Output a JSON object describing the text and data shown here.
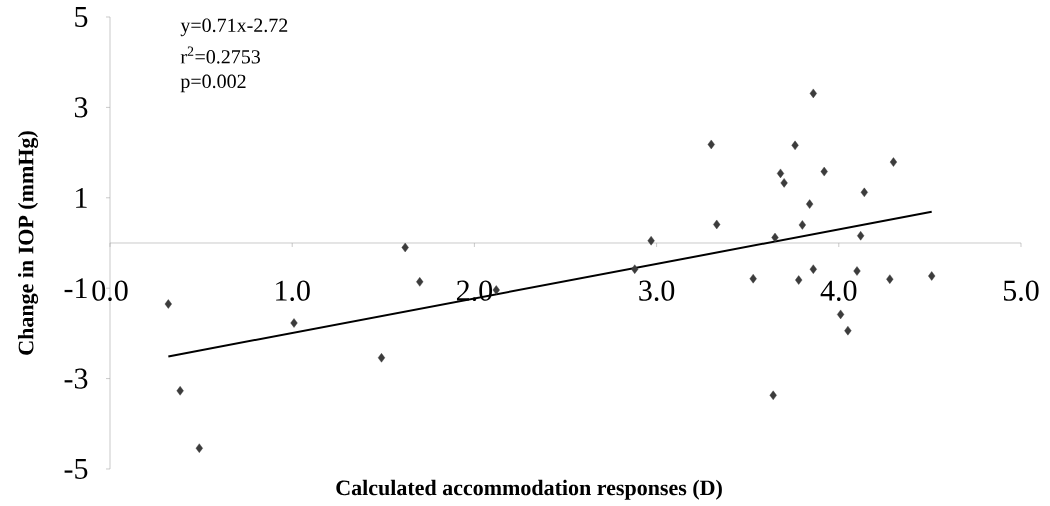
{
  "chart_data": {
    "type": "scatter",
    "xlabel": "Calculated accommodation responses (D)",
    "ylabel": "Change in IOP (mmHg)",
    "annotations": [
      "y=0.71x-2.72",
      "r$^{2}$=0.2753",
      "p=0.002"
    ],
    "xlim": [
      0,
      5
    ],
    "ylim": [
      -5,
      5
    ],
    "xticks": [
      {
        "value": 0,
        "label": "0.0"
      },
      {
        "value": 1,
        "label": "1.0"
      },
      {
        "value": 2,
        "label": "2.0"
      },
      {
        "value": 3,
        "label": "3.0"
      },
      {
        "value": 4,
        "label": "4.0"
      },
      {
        "value": 5,
        "label": "5.0"
      }
    ],
    "yticks": [
      -5,
      -3,
      -1,
      1,
      3,
      5
    ],
    "grid": false,
    "series": [
      {
        "color": "#3c3c3c",
        "marker": "diamond",
        "x": [
          0.32,
          0.385,
          0.49,
          1.01,
          1.49,
          1.62,
          1.7,
          2.12,
          2.88,
          2.97,
          3.3,
          3.33,
          3.53,
          3.64,
          3.65,
          3.68,
          3.7,
          3.76,
          3.78,
          3.8,
          3.84,
          3.86,
          3.86,
          3.92,
          4.01,
          4.05,
          4.1,
          4.12,
          4.14,
          4.28,
          4.3,
          4.51
        ],
        "values": [
          -1.35,
          -3.27,
          -4.54,
          -1.77,
          -2.54,
          -0.1,
          -0.86,
          -1.04,
          -0.58,
          0.05,
          2.18,
          0.41,
          -0.79,
          -3.37,
          0.12,
          1.54,
          1.33,
          2.16,
          -0.82,
          0.4,
          0.86,
          3.31,
          -0.58,
          1.58,
          -1.58,
          -1.94,
          -0.62,
          0.16,
          1.12,
          -0.8,
          1.79,
          -0.73
        ]
      },
      {
        "type": "line",
        "marker": "none",
        "color": "#000000",
        "x": [
          0.32,
          4.51
        ],
        "values": [
          -2.51,
          0.69
        ]
      }
    ]
  }
}
